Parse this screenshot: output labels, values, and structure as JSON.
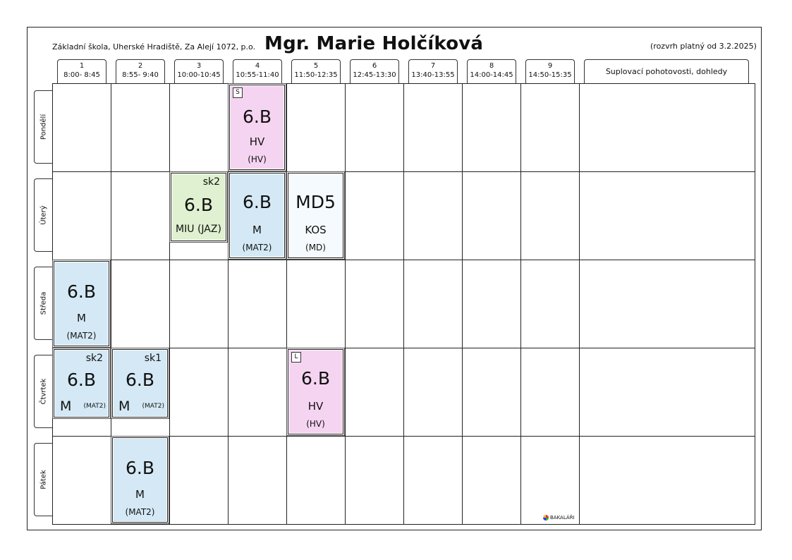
{
  "header": {
    "school": "Základní škola, Uherské Hradiště, Za Alejí 1072, p.o.",
    "teacher": "Mgr. Marie Holčíková",
    "validity": "(rozvrh platný od 3.2.2025)"
  },
  "periods": [
    {
      "num": "1",
      "time": "8:00- 8:45"
    },
    {
      "num": "2",
      "time": "8:55- 9:40"
    },
    {
      "num": "3",
      "time": "10:00-10:45"
    },
    {
      "num": "4",
      "time": "10:55-11:40"
    },
    {
      "num": "5",
      "time": "11:50-12:35"
    },
    {
      "num": "6",
      "time": "12:45-13:30"
    },
    {
      "num": "7",
      "time": "13:40-13:55"
    },
    {
      "num": "8",
      "time": "14:00-14:45"
    },
    {
      "num": "9",
      "time": "14:50-15:35"
    }
  ],
  "supervision_header": "Suplovací pohotovosti, dohledy",
  "days": [
    "Pondělí",
    "Úterý",
    "Středa",
    "Čtvrtek",
    "Pátek"
  ],
  "lessons": [
    {
      "day": "Pondělí",
      "period": "4",
      "class": "6.B",
      "subject": "HV",
      "room": "(HV)",
      "flag": "S",
      "color": "#f5d4f1"
    },
    {
      "day": "Úterý",
      "period": "3",
      "class": "6.B",
      "subject": "MIU (JAZ)",
      "group": "sk2",
      "color": "#dff1d0"
    },
    {
      "day": "Úterý",
      "period": "4",
      "class": "6.B",
      "subject": "M",
      "room": "(MAT2)",
      "color": "#d4e9f5"
    },
    {
      "day": "Úterý",
      "period": "5",
      "class": "MD5",
      "subject": "KOS",
      "room": "(MD)",
      "color": "#f4fafd"
    },
    {
      "day": "Středa",
      "period": "1",
      "class": "6.B",
      "subject": "M",
      "room": "(MAT2)",
      "color": "#d4e9f5"
    },
    {
      "day": "Čtvrtek",
      "period": "1",
      "class": "6.B",
      "subject": "M",
      "room": "(MAT2)",
      "group": "sk2",
      "color": "#d4e9f5"
    },
    {
      "day": "Čtvrtek",
      "period": "2",
      "class": "6.B",
      "subject": "M",
      "room": "(MAT2)",
      "group": "sk1",
      "color": "#d4e9f5"
    },
    {
      "day": "Čtvrtek",
      "period": "5",
      "class": "6.B",
      "subject": "HV",
      "room": "(HV)",
      "flag": "L",
      "color": "#f5d4f1"
    },
    {
      "day": "Pátek",
      "period": "2",
      "class": "6.B",
      "subject": "M",
      "room": "(MAT2)",
      "color": "#d4e9f5"
    }
  ],
  "logo": {
    "text": "BAKALÁŘI",
    "icon": "bakalari-logo-icon"
  }
}
